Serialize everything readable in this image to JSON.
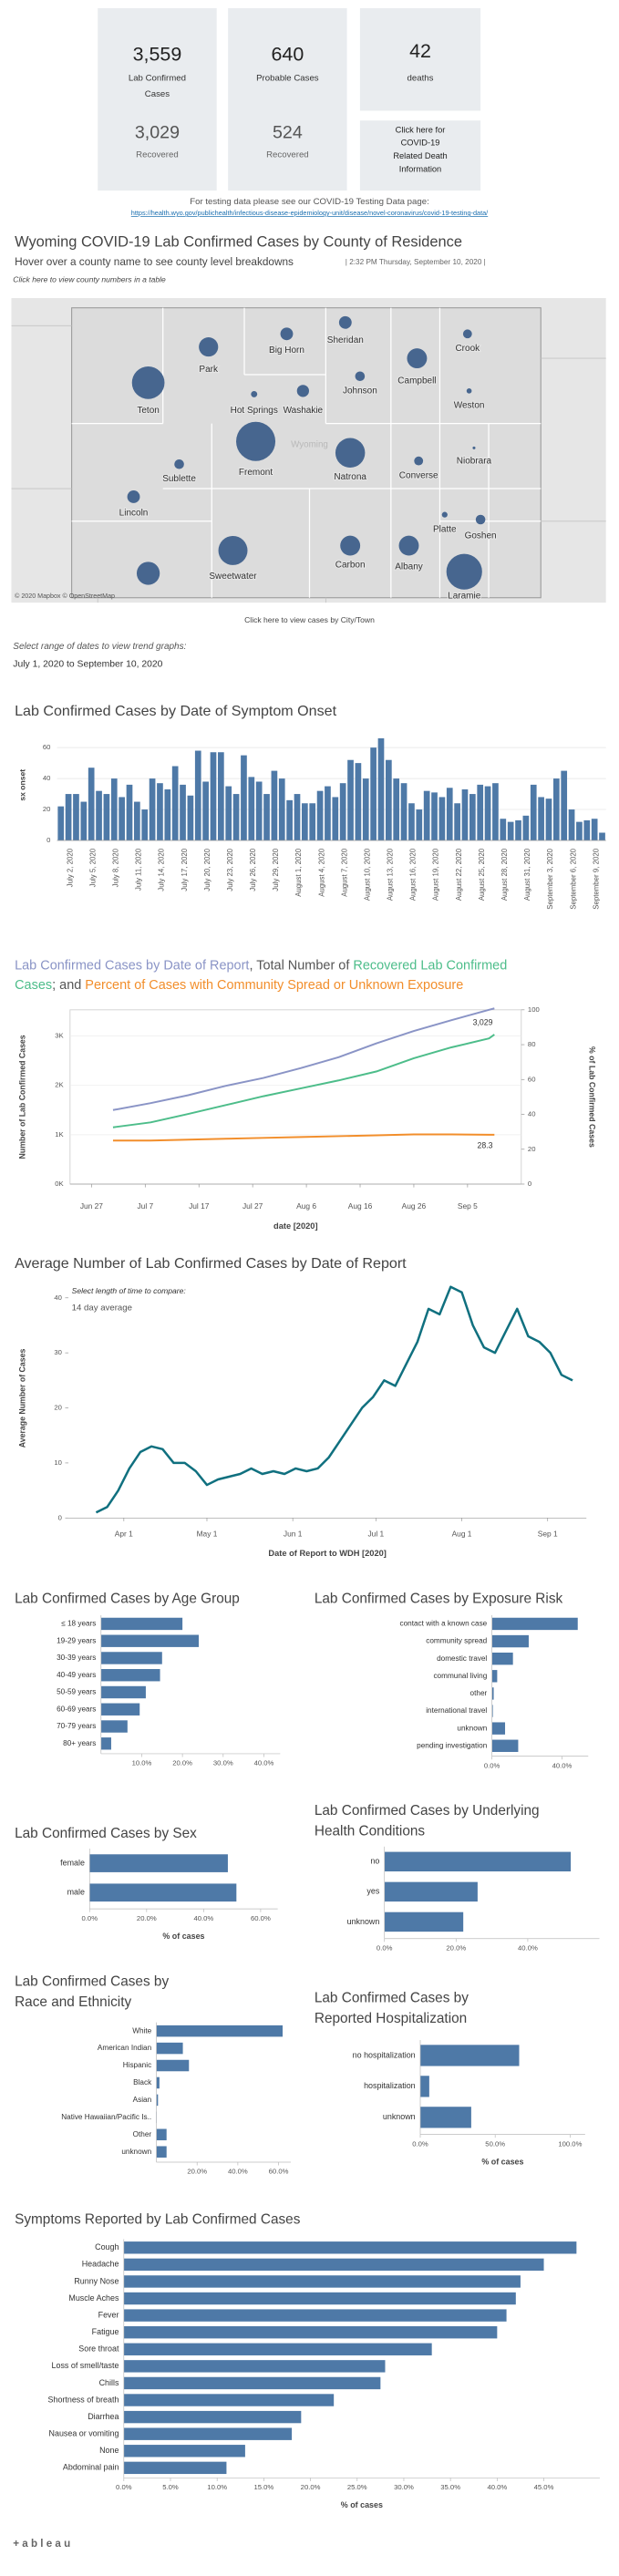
{
  "kpis": [
    {
      "value": "3,559",
      "label": [
        "Lab Confirmed",
        "Cases"
      ],
      "recovered": "3,029",
      "recovered_label": "Recovered"
    },
    {
      "value": "640",
      "label": [
        "Probable Cases"
      ],
      "recovered": "524",
      "recovered_label": "Recovered"
    },
    {
      "value": "42",
      "label": [
        "deaths"
      ]
    }
  ],
  "death_link": [
    "Click here for",
    "COVID-19",
    "Related Death",
    "Information"
  ],
  "testing": {
    "text": "For testing data please see our COVID-19 Testing Data page:",
    "url": "https://health.wyo.gov/publichealth/infectious-disease-epidemiology-unit/disease/novel-coronavirus/covid-19-testing-data/"
  },
  "map": {
    "title": "Wyoming COVID-19 Lab Confirmed Cases by County of Residence",
    "subtitle": "Hover over a county name to see county level breakdowns",
    "timestamp": "|  2:32 PM Thursday, September 10, 2020 |",
    "table_link": "Click here to view county numbers in a table",
    "counties": [
      "Park",
      "Big Horn",
      "Sheridan",
      "Crook",
      "Teton",
      "Hot Springs",
      "Washakie",
      "Johnson",
      "Campbell",
      "Weston",
      "Sublette",
      "Fremont",
      "Natrona",
      "Converse",
      "Niobrara",
      "Lincoln",
      "Platte",
      "Goshen",
      "Sweetwater",
      "Carbon",
      "Albany",
      "Laramie",
      null
    ],
    "cases": [
      140,
      60,
      60,
      30,
      400,
      15,
      55,
      35,
      150,
      10,
      35,
      580,
      330,
      30,
      3,
      60,
      12,
      35,
      320,
      150,
      150,
      480,
      200
    ],
    "color": "#3e5f8a",
    "state_label": "Wyoming",
    "credit": "© 2020 Mapbox © OpenStreetMap",
    "city_link": "Click here to view cases by City/Town"
  },
  "date_range": {
    "prompt": "Select range of dates to view trend graphs:",
    "value": "July 1, 2020 to September 10, 2020"
  },
  "footer": "+ a b l e a u",
  "chart_data": [
    {
      "type": "bar",
      "title": "Lab Confirmed Cases by Date of Symptom Onset",
      "y_label": "sx onset",
      "color": "#4e79a7",
      "ylim": [
        0,
        70
      ],
      "yticks": [
        0,
        20,
        40,
        60
      ],
      "grid": true,
      "categories": [
        null,
        "July 2, 2020",
        null,
        null,
        "July 5, 2020",
        null,
        null,
        "July 8, 2020",
        null,
        null,
        "July 11, 2020",
        null,
        null,
        "July 14, 2020",
        null,
        null,
        "July 17, 2020",
        null,
        null,
        "July 20, 2020",
        null,
        null,
        "July 23, 2020",
        null,
        null,
        "July 26, 2020",
        null,
        null,
        "July 29, 2020",
        null,
        null,
        "August 1, 2020",
        null,
        null,
        "August 4, 2020",
        null,
        null,
        "August 7, 2020",
        null,
        null,
        "August 10, 2020",
        null,
        null,
        "August 13, 2020",
        null,
        null,
        "August 16, 2020",
        null,
        null,
        "August 19, 2020",
        null,
        null,
        "August 22, 2020",
        null,
        null,
        "August 25, 2020",
        null,
        null,
        "August 28, 2020",
        null,
        null,
        "August 31, 2020",
        null,
        null,
        "September 3, 2020",
        null,
        null,
        "September 6, 2020",
        null,
        null,
        "September 9, 2020",
        null
      ],
      "values": [
        22,
        30,
        30,
        25,
        47,
        32,
        30,
        40,
        28,
        36,
        25,
        20,
        40,
        37,
        33,
        48,
        36,
        29,
        58,
        38,
        57,
        57,
        35,
        30,
        55,
        41,
        38,
        30,
        45,
        40,
        26,
        30,
        24,
        24,
        32,
        35,
        28,
        37,
        52,
        50,
        40,
        60,
        66,
        52,
        40,
        37,
        24,
        20,
        32,
        31,
        28,
        34,
        24,
        33,
        30,
        36,
        35,
        37,
        14,
        12,
        13,
        16,
        36,
        28,
        27,
        40,
        45,
        20,
        12,
        13,
        14,
        5
      ]
    },
    {
      "type": "line",
      "title": [
        [
          {
            "text": "Lab Confirmed Cases by Date of Report",
            "color": "#8a94c6"
          },
          {
            "text": ", Total Number of ",
            "color": "#555555"
          },
          {
            "text": "Recovered Lab Confirmed",
            "color": "#4dbd8a"
          }
        ],
        [
          {
            "text": "Cases",
            "color": "#4dbd8a"
          },
          {
            "text": "; and ",
            "color": "#555555"
          },
          {
            "text": "Percent of Cases with Community Spread or Unknown Exposure",
            "color": "#f28e2b"
          }
        ]
      ],
      "y_label": "Number of Lab Confirmed Cases",
      "y2_label": "% of Lab Confirmed Cases",
      "x_label": "date [2020]",
      "x": [
        "2020-07-01",
        "2020-07-08",
        "2020-07-15",
        "2020-07-22",
        "2020-07-29",
        "2020-08-05",
        "2020-08-12",
        "2020-08-19",
        "2020-08-26",
        "2020-09-02",
        "2020-09-09",
        "2020-09-10"
      ],
      "xlim": [
        "2020-06-23",
        "2020-09-15"
      ],
      "xticks": [
        {
          "value": "2020-06-27",
          "label": "Jun 27"
        },
        {
          "value": "2020-07-07",
          "label": "Jul 7"
        },
        {
          "value": "2020-07-17",
          "label": "Jul 17"
        },
        {
          "value": "2020-07-27",
          "label": "Jul 27"
        },
        {
          "value": "2020-08-06",
          "label": "Aug 6"
        },
        {
          "value": "2020-08-16",
          "label": "Aug 16"
        },
        {
          "value": "2020-08-26",
          "label": "Aug 26"
        },
        {
          "value": "2020-09-05",
          "label": "Sep 5"
        }
      ],
      "ylim": [
        0,
        3530
      ],
      "yticks": [
        {
          "value": 0,
          "label": "0K"
        },
        {
          "value": 1000,
          "label": "1K"
        },
        {
          "value": 2000,
          "label": "2K"
        },
        {
          "value": 3000,
          "label": "3K"
        }
      ],
      "y2lim": [
        0,
        100
      ],
      "y2ticks": [
        0,
        20,
        40,
        60,
        80,
        100
      ],
      "grid": true,
      "series": [
        {
          "name": "Lab Confirmed Cases by Date of Report",
          "color": "#8a94c6",
          "values": [
            1500,
            1640,
            1800,
            1990,
            2150,
            2350,
            2570,
            2850,
            3100,
            3320,
            3530,
            3559
          ]
        },
        {
          "name": "Recovered Lab Confirmed Cases",
          "color": "#4dbd8a",
          "values": [
            1150,
            1250,
            1420,
            1600,
            1780,
            1940,
            2100,
            2280,
            2550,
            2770,
            2950,
            3029
          ],
          "value_labels": [
            null,
            null,
            null,
            null,
            null,
            null,
            null,
            null,
            null,
            null,
            null,
            "3,029"
          ],
          "end_label": "above"
        },
        {
          "name": "Percent of Cases with Community Spread or Unknown Exposure",
          "color": "#f28e2b",
          "axis": "y2",
          "values": [
            25,
            25,
            25.5,
            26,
            26.5,
            27,
            27.5,
            28,
            28.5,
            28.5,
            28.3,
            28.3
          ],
          "end_label": "below"
        }
      ]
    },
    {
      "type": "line",
      "title": "Average Number of Lab Confirmed Cases by Date of Report",
      "annotation": "Select length of time to compare:",
      "control": "14 day average",
      "y_label": "Average Number of Cases",
      "x_label": "Date of Report to WDH [2020]",
      "x": [
        "2020-03-22",
        "2020-03-26",
        "2020-03-30",
        "2020-04-03",
        "2020-04-07",
        "2020-04-11",
        "2020-04-15",
        "2020-04-19",
        "2020-04-23",
        "2020-04-27",
        "2020-05-01",
        "2020-05-05",
        "2020-05-09",
        "2020-05-13",
        "2020-05-17",
        "2020-05-21",
        "2020-05-25",
        "2020-05-29",
        "2020-06-02",
        "2020-06-06",
        "2020-06-10",
        "2020-06-14",
        "2020-06-18",
        "2020-06-22",
        "2020-06-26",
        "2020-06-30",
        "2020-07-04",
        "2020-07-08",
        "2020-07-12",
        "2020-07-16",
        "2020-07-20",
        "2020-07-24",
        "2020-07-28",
        "2020-08-01",
        "2020-08-05",
        "2020-08-09",
        "2020-08-13",
        "2020-08-17",
        "2020-08-21",
        "2020-08-25",
        "2020-08-29",
        "2020-09-02",
        "2020-09-06",
        "2020-09-10"
      ],
      "xlim": [
        "2020-03-12",
        "2020-09-15"
      ],
      "xticks": [
        {
          "value": "2020-04-01",
          "label": "Apr 1"
        },
        {
          "value": "2020-05-01",
          "label": "May 1"
        },
        {
          "value": "2020-06-01",
          "label": "Jun 1"
        },
        {
          "value": "2020-07-01",
          "label": "Jul 1"
        },
        {
          "value": "2020-08-01",
          "label": "Aug 1"
        },
        {
          "value": "2020-09-01",
          "label": "Sep 1"
        }
      ],
      "ylim": [
        0,
        43.5
      ],
      "yticks": [
        0,
        10,
        20,
        30,
        40
      ],
      "grid": false,
      "series": [
        {
          "name": "14 day average",
          "color": "#10707f",
          "values": [
            1,
            2,
            5,
            9,
            12,
            13,
            12.5,
            10,
            10,
            8.5,
            6,
            7,
            7.5,
            8,
            9,
            8,
            8.5,
            8,
            9,
            8.5,
            9,
            11,
            14,
            17,
            20,
            22,
            25,
            24,
            28,
            32,
            38,
            37,
            42,
            41,
            35,
            31,
            30,
            34,
            38,
            33,
            32,
            30,
            26,
            25
          ]
        }
      ]
    },
    {
      "type": "hbar",
      "title": "Lab Confirmed Cases by Age Group",
      "color": "#4e79a7",
      "categories": [
        "≤ 18 years",
        "19-29 years",
        "30-39 years",
        "40-49 years",
        "50-59 years",
        "60-69 years",
        "70-79 years",
        "80+ years"
      ],
      "values": [
        20,
        24,
        15,
        14.5,
        11,
        9.5,
        6.5,
        2.5
      ],
      "xlim": [
        0,
        44
      ],
      "xticks": [
        {
          "value": 10,
          "label": "10.0%"
        },
        {
          "value": 20,
          "label": "20.0%"
        },
        {
          "value": 30,
          "label": "30.0%"
        },
        {
          "value": 40,
          "label": "40.0%"
        }
      ]
    },
    {
      "type": "hbar",
      "title": "Lab Confirmed Cases by Exposure Risk",
      "color": "#4e79a7",
      "categories": [
        "contact with a known case",
        "community spread",
        "domestic travel",
        "communal living",
        "other",
        "international travel",
        "unknown",
        "pending investigation"
      ],
      "values": [
        49,
        21,
        12,
        3,
        1,
        0.5,
        7.5,
        15
      ],
      "xlim": [
        0,
        55
      ],
      "xticks": [
        {
          "value": 0,
          "label": "0.0%"
        },
        {
          "value": 40,
          "label": "40.0%"
        }
      ]
    },
    {
      "type": "hbar",
      "title": "Lab Confirmed Cases by Sex",
      "x_label": "% of cases",
      "color": "#4e79a7",
      "categories": [
        "female",
        "male"
      ],
      "values": [
        48.5,
        51.5
      ],
      "xlim": [
        0,
        66
      ],
      "xticks": [
        {
          "value": 0,
          "label": "0.0%"
        },
        {
          "value": 20,
          "label": "20.0%"
        },
        {
          "value": 40,
          "label": "40.0%"
        },
        {
          "value": 60,
          "label": "60.0%"
        }
      ]
    },
    {
      "type": "hbar",
      "title": [
        "Lab Confirmed Cases by Underlying",
        "Health Conditions"
      ],
      "color": "#4e79a7",
      "categories": [
        "no",
        "yes",
        "unknown"
      ],
      "values": [
        52,
        26,
        22
      ],
      "xlim": [
        0,
        60
      ],
      "xticks": [
        {
          "value": 0,
          "label": "0.0%"
        },
        {
          "value": 20,
          "label": "20.0%"
        },
        {
          "value": 40,
          "label": "40.0%"
        }
      ]
    },
    {
      "type": "hbar",
      "title": [
        "Lab Confirmed Cases by",
        "Race and Ethnicity"
      ],
      "color": "#4e79a7",
      "categories": [
        "White",
        "American Indian",
        "Hispanic",
        "Black",
        "Asian",
        "Native Hawaiian/Pacific Is..",
        "Other",
        "unknown"
      ],
      "values": [
        62,
        13,
        16,
        1.5,
        0.8,
        0.2,
        5,
        5
      ],
      "xlim": [
        0,
        66
      ],
      "xticks": [
        {
          "value": 20,
          "label": "20.0%"
        },
        {
          "value": 40,
          "label": "40.0%"
        },
        {
          "value": 60,
          "label": "60.0%"
        }
      ]
    },
    {
      "type": "hbar",
      "title": [
        "Lab Confirmed Cases by",
        "Reported Hospitalization"
      ],
      "x_label": "% of cases",
      "color": "#4e79a7",
      "categories": [
        "no hospitalization",
        "hospitalization",
        "unknown"
      ],
      "values": [
        66,
        6,
        34
      ],
      "xlim": [
        0,
        110
      ],
      "xticks": [
        {
          "value": 0,
          "label": "0.0%"
        },
        {
          "value": 50,
          "label": "50.0%"
        },
        {
          "value": 100,
          "label": "100.0%"
        }
      ]
    },
    {
      "type": "hbar",
      "title": "Symptoms Reported by Lab Confirmed Cases",
      "x_label": "% of cases",
      "color": "#4e79a7",
      "categories": [
        "Cough",
        "Headache",
        "Runny Nose",
        "Muscle Aches",
        "Fever",
        "Fatigue",
        "Sore throat",
        "Loss of smell/taste",
        "Chills",
        "Shortness of breath",
        "Diarrhea",
        "Nausea or vomiting",
        "None",
        "Abdominal pain"
      ],
      "values": [
        48.5,
        45,
        42.5,
        42,
        41,
        40,
        33,
        28,
        27.5,
        22.5,
        19,
        18,
        13,
        11
      ],
      "xlim": [
        0,
        51
      ],
      "xticks": [
        {
          "value": 0,
          "label": "0.0%"
        },
        {
          "value": 5,
          "label": "5.0%"
        },
        {
          "value": 10,
          "label": "10.0%"
        },
        {
          "value": 15,
          "label": "15.0%"
        },
        {
          "value": 20,
          "label": "20.0%"
        },
        {
          "value": 25,
          "label": "25.0%"
        },
        {
          "value": 30,
          "label": "30.0%"
        },
        {
          "value": 35,
          "label": "35.0%"
        },
        {
          "value": 40,
          "label": "40.0%"
        },
        {
          "value": 45,
          "label": "45.0%"
        }
      ]
    }
  ]
}
